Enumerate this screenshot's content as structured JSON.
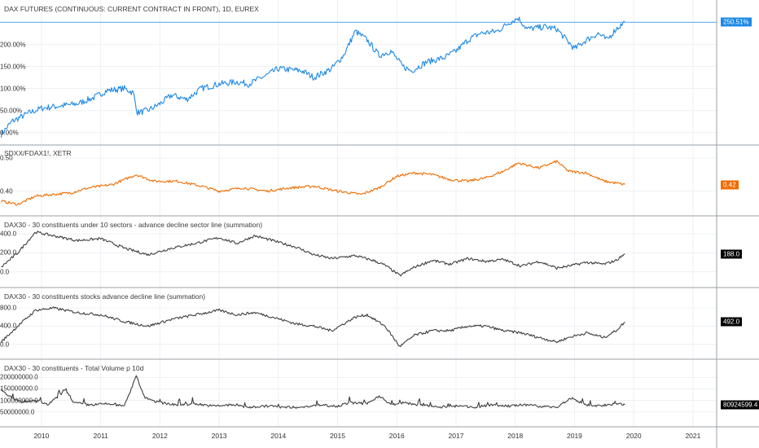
{
  "chart_data": {
    "type": "line",
    "x_axis": {
      "ticks": [
        "2010",
        "2011",
        "2012",
        "2013",
        "2014",
        "2015",
        "2016",
        "2017",
        "2018",
        "2019",
        "2020",
        "2021"
      ],
      "xlim": [
        2009.3,
        2021.4
      ]
    },
    "panes": [
      {
        "title": "DAX FUTURES (CONTINUOUS: CURRENT CONTRACT IN FRONT), 1D, EUREX",
        "series_color": "#1e88e5",
        "ylim": [
          -10,
          275
        ],
        "ytick_labels": [
          "0.00%",
          "50.00%",
          "100.00%",
          "150.00%",
          "200.00%"
        ],
        "ytick_values": [
          0,
          50,
          100,
          150,
          200
        ],
        "last_label": "250.51%",
        "last_value": 250.51,
        "badge_color": "#1e88e5",
        "badge_text_color": "#ffffff",
        "ref_line": true,
        "points": [
          [
            2009.32,
            -5
          ],
          [
            2009.5,
            25
          ],
          [
            2009.8,
            45
          ],
          [
            2010.0,
            55
          ],
          [
            2010.3,
            60
          ],
          [
            2010.6,
            65
          ],
          [
            2010.9,
            80
          ],
          [
            2011.1,
            95
          ],
          [
            2011.4,
            100
          ],
          [
            2011.55,
            90
          ],
          [
            2011.62,
            45
          ],
          [
            2011.8,
            50
          ],
          [
            2012.0,
            65
          ],
          [
            2012.2,
            85
          ],
          [
            2012.45,
            75
          ],
          [
            2012.7,
            100
          ],
          [
            2013.0,
            110
          ],
          [
            2013.3,
            115
          ],
          [
            2013.5,
            110
          ],
          [
            2013.8,
            130
          ],
          [
            2014.0,
            145
          ],
          [
            2014.4,
            140
          ],
          [
            2014.6,
            125
          ],
          [
            2014.9,
            145
          ],
          [
            2015.1,
            175
          ],
          [
            2015.3,
            230
          ],
          [
            2015.5,
            210
          ],
          [
            2015.7,
            175
          ],
          [
            2015.9,
            185
          ],
          [
            2016.1,
            150
          ],
          [
            2016.25,
            140
          ],
          [
            2016.5,
            160
          ],
          [
            2016.8,
            170
          ],
          [
            2017.0,
            185
          ],
          [
            2017.2,
            210
          ],
          [
            2017.4,
            225
          ],
          [
            2017.7,
            230
          ],
          [
            2017.9,
            250
          ],
          [
            2018.05,
            260
          ],
          [
            2018.2,
            235
          ],
          [
            2018.5,
            240
          ],
          [
            2018.7,
            235
          ],
          [
            2018.9,
            205
          ],
          [
            2019.0,
            190
          ],
          [
            2019.2,
            210
          ],
          [
            2019.4,
            225
          ],
          [
            2019.55,
            210
          ],
          [
            2019.7,
            235
          ],
          [
            2019.85,
            250.51
          ]
        ]
      },
      {
        "title": "SDXX/FDAX1!, XETR",
        "series_color": "#ef6c00",
        "ylim": [
          0.35,
          0.505
        ],
        "ytick_labels": [
          "0.40",
          "0.50"
        ],
        "ytick_values": [
          0.4,
          0.5
        ],
        "last_label": "0.42",
        "last_value": 0.42,
        "badge_color": "#ef6c00",
        "badge_text_color": "#ffffff",
        "ref_line": false,
        "points": [
          [
            2009.32,
            0.37
          ],
          [
            2009.6,
            0.36
          ],
          [
            2009.9,
            0.385
          ],
          [
            2010.2,
            0.39
          ],
          [
            2010.5,
            0.395
          ],
          [
            2010.8,
            0.41
          ],
          [
            2011.2,
            0.42
          ],
          [
            2011.6,
            0.45
          ],
          [
            2011.9,
            0.43
          ],
          [
            2012.3,
            0.43
          ],
          [
            2012.7,
            0.415
          ],
          [
            2013.0,
            0.4
          ],
          [
            2013.4,
            0.41
          ],
          [
            2013.8,
            0.4
          ],
          [
            2014.2,
            0.41
          ],
          [
            2014.6,
            0.415
          ],
          [
            2015.0,
            0.4
          ],
          [
            2015.4,
            0.39
          ],
          [
            2015.7,
            0.41
          ],
          [
            2016.0,
            0.445
          ],
          [
            2016.3,
            0.455
          ],
          [
            2016.6,
            0.45
          ],
          [
            2016.9,
            0.435
          ],
          [
            2017.2,
            0.43
          ],
          [
            2017.5,
            0.44
          ],
          [
            2017.8,
            0.46
          ],
          [
            2018.05,
            0.485
          ],
          [
            2018.4,
            0.47
          ],
          [
            2018.7,
            0.49
          ],
          [
            2018.9,
            0.46
          ],
          [
            2019.2,
            0.455
          ],
          [
            2019.5,
            0.43
          ],
          [
            2019.85,
            0.42
          ]
        ]
      },
      {
        "title": "DAX30 - 30 constituents under 10 sectors - advance decline sector line (summation)",
        "series_color": "#3f3f3f",
        "ylim": [
          -80,
          470
        ],
        "ytick_labels": [
          "0.0",
          "200.0",
          "400.0"
        ],
        "ytick_values": [
          0,
          200,
          400
        ],
        "last_label": "188.0",
        "last_value": 188,
        "badge_color": "#000000",
        "badge_text_color": "#ffffff",
        "ref_line": false,
        "points": [
          [
            2009.32,
            50
          ],
          [
            2009.6,
            200
          ],
          [
            2009.9,
            420
          ],
          [
            2010.2,
            380
          ],
          [
            2010.6,
            330
          ],
          [
            2011.0,
            350
          ],
          [
            2011.4,
            250
          ],
          [
            2011.8,
            180
          ],
          [
            2012.2,
            250
          ],
          [
            2012.6,
            300
          ],
          [
            2013.0,
            360
          ],
          [
            2013.3,
            300
          ],
          [
            2013.6,
            380
          ],
          [
            2013.9,
            330
          ],
          [
            2014.3,
            260
          ],
          [
            2014.6,
            180
          ],
          [
            2014.9,
            140
          ],
          [
            2015.3,
            170
          ],
          [
            2015.6,
            120
          ],
          [
            2015.8,
            70
          ],
          [
            2016.05,
            -40
          ],
          [
            2016.3,
            50
          ],
          [
            2016.6,
            120
          ],
          [
            2016.9,
            80
          ],
          [
            2017.2,
            140
          ],
          [
            2017.5,
            110
          ],
          [
            2017.8,
            130
          ],
          [
            2018.1,
            60
          ],
          [
            2018.4,
            110
          ],
          [
            2018.7,
            40
          ],
          [
            2018.9,
            60
          ],
          [
            2019.2,
            100
          ],
          [
            2019.5,
            80
          ],
          [
            2019.7,
            120
          ],
          [
            2019.85,
            188
          ]
        ]
      },
      {
        "title": "DAX30 - 30 constituents stocks advance decline line (summation)",
        "series_color": "#3f3f3f",
        "ylim": [
          -150,
          1000
        ],
        "ytick_labels": [
          "0.0",
          "400.0",
          "800.0"
        ],
        "ytick_values": [
          0,
          400,
          800
        ],
        "last_label": "492.0",
        "last_value": 492,
        "badge_color": "#000000",
        "badge_text_color": "#ffffff",
        "ref_line": false,
        "points": [
          [
            2009.32,
            50
          ],
          [
            2009.6,
            400
          ],
          [
            2009.9,
            750
          ],
          [
            2010.2,
            800
          ],
          [
            2010.6,
            700
          ],
          [
            2011.0,
            650
          ],
          [
            2011.4,
            500
          ],
          [
            2011.8,
            400
          ],
          [
            2012.2,
            550
          ],
          [
            2012.6,
            650
          ],
          [
            2013.0,
            750
          ],
          [
            2013.3,
            650
          ],
          [
            2013.6,
            700
          ],
          [
            2013.9,
            600
          ],
          [
            2014.3,
            450
          ],
          [
            2014.6,
            400
          ],
          [
            2014.9,
            300
          ],
          [
            2015.3,
            600
          ],
          [
            2015.5,
            650
          ],
          [
            2015.8,
            400
          ],
          [
            2016.05,
            -50
          ],
          [
            2016.3,
            200
          ],
          [
            2016.6,
            300
          ],
          [
            2016.9,
            300
          ],
          [
            2017.2,
            400
          ],
          [
            2017.5,
            400
          ],
          [
            2017.8,
            300
          ],
          [
            2018.1,
            250
          ],
          [
            2018.4,
            150
          ],
          [
            2018.7,
            50
          ],
          [
            2018.9,
            150
          ],
          [
            2019.2,
            250
          ],
          [
            2019.5,
            150
          ],
          [
            2019.7,
            300
          ],
          [
            2019.85,
            492
          ]
        ]
      },
      {
        "title": "DAX30 - 30 constituents - Total Volume p 10d",
        "series_color": "#3f3f3f",
        "ylim": [
          20000000,
          230000000
        ],
        "ytick_labels": [
          "50000000.0",
          "100000000.0",
          "150000000.0",
          "200000000.0"
        ],
        "ytick_values": [
          50000000,
          100000000,
          150000000,
          200000000
        ],
        "last_label": "80924599.4",
        "last_value": 80924599.4,
        "badge_color": "#000000",
        "badge_text_color": "#ffffff",
        "ref_line": false,
        "points": [
          [
            2009.32,
            150000000
          ],
          [
            2009.5,
            110000000
          ],
          [
            2009.7,
            90000000
          ],
          [
            2009.9,
            100000000
          ],
          [
            2010.1,
            80000000
          ],
          [
            2010.3,
            120000000
          ],
          [
            2010.4,
            150000000
          ],
          [
            2010.55,
            90000000
          ],
          [
            2010.8,
            80000000
          ],
          [
            2011.1,
            85000000
          ],
          [
            2011.4,
            75000000
          ],
          [
            2011.6,
            205000000
          ],
          [
            2011.75,
            110000000
          ],
          [
            2012.0,
            90000000
          ],
          [
            2012.3,
            80000000
          ],
          [
            2012.6,
            85000000
          ],
          [
            2012.9,
            75000000
          ],
          [
            2013.2,
            80000000
          ],
          [
            2013.5,
            70000000
          ],
          [
            2013.8,
            75000000
          ],
          [
            2014.1,
            70000000
          ],
          [
            2014.4,
            70000000
          ],
          [
            2014.7,
            80000000
          ],
          [
            2015.0,
            75000000
          ],
          [
            2015.2,
            90000000
          ],
          [
            2015.5,
            85000000
          ],
          [
            2015.7,
            120000000
          ],
          [
            2015.9,
            80000000
          ],
          [
            2016.1,
            90000000
          ],
          [
            2016.4,
            80000000
          ],
          [
            2016.7,
            70000000
          ],
          [
            2017.0,
            75000000
          ],
          [
            2017.3,
            70000000
          ],
          [
            2017.6,
            80000000
          ],
          [
            2017.9,
            75000000
          ],
          [
            2018.1,
            80000000
          ],
          [
            2018.4,
            75000000
          ],
          [
            2018.7,
            70000000
          ],
          [
            2018.95,
            110000000
          ],
          [
            2019.2,
            80000000
          ],
          [
            2019.5,
            75000000
          ],
          [
            2019.7,
            85000000
          ],
          [
            2019.85,
            80924599.4
          ]
        ]
      }
    ]
  }
}
